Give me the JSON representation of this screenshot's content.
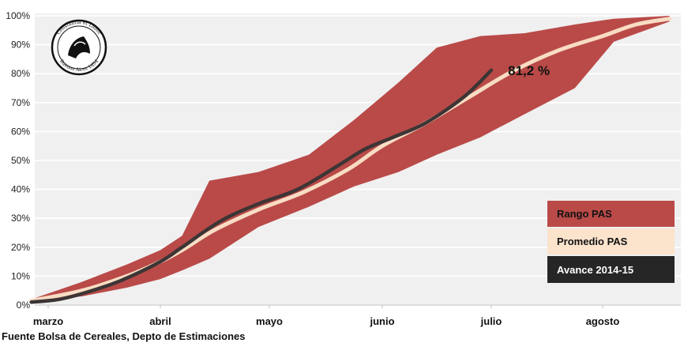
{
  "chart_data": {
    "type": "area",
    "title": "",
    "xlabel": "",
    "ylabel": "",
    "x_unit": "month index (0 = marzo ... 5 = agosto)",
    "categories": [
      "marzo",
      "abril",
      "mayo",
      "junio",
      "julio",
      "agosto"
    ],
    "xlim": [
      -0.15,
      5.6
    ],
    "ylim": [
      0,
      100
    ],
    "y_ticks": [
      "0%",
      "10%",
      "20%",
      "30%",
      "40%",
      "50%",
      "60%",
      "70%",
      "80%",
      "90%",
      "100%"
    ],
    "grid": true,
    "legend_position": "right",
    "series": [
      {
        "name": "Rango PAS",
        "kind": "band",
        "color": "#b94a48",
        "x": [
          -0.15,
          0.3,
          0.7,
          1.0,
          1.2,
          1.45,
          1.9,
          2.35,
          2.75,
          3.15,
          3.5,
          3.9,
          4.3,
          4.75,
          5.1,
          5.6
        ],
        "upper": [
          2,
          8,
          14,
          19,
          24,
          43,
          46,
          52,
          64,
          77,
          89,
          93,
          94,
          97,
          99,
          100
        ],
        "lower": [
          1,
          3,
          6,
          9,
          12,
          16,
          27,
          34,
          41,
          46,
          52,
          58,
          66,
          75,
          91,
          98
        ]
      },
      {
        "name": "Promedio PAS",
        "kind": "line",
        "color": "#f8dcc4",
        "x": [
          -0.15,
          0.3,
          0.7,
          1.0,
          1.2,
          1.5,
          1.9,
          2.3,
          2.7,
          3.0,
          3.4,
          3.8,
          4.2,
          4.6,
          5.0,
          5.3,
          5.6
        ],
        "y": [
          1.5,
          5,
          10,
          15,
          19,
          26,
          33,
          39,
          47,
          55,
          63,
          72,
          81,
          88,
          93,
          97,
          99
        ]
      },
      {
        "name": "Avance 2014-15",
        "kind": "line",
        "color": "#3d3535",
        "x": [
          -0.15,
          0.1,
          0.35,
          0.65,
          1.0,
          1.2,
          1.55,
          1.9,
          2.25,
          2.6,
          2.85,
          3.1,
          3.4,
          3.75,
          4.0
        ],
        "y": [
          1,
          2,
          4.5,
          8.5,
          15,
          20,
          29,
          35,
          40,
          48,
          54,
          58,
          63,
          72,
          81.2
        ]
      }
    ],
    "annotations": [
      {
        "text": "81,2 %",
        "x": 4.15,
        "y": 81.2
      }
    ]
  },
  "legend": {
    "items": [
      {
        "label": "Rango PAS",
        "background": "#b94a48",
        "text_color": "#111111"
      },
      {
        "label": "Promedio PAS",
        "background": "#fbe3cc",
        "text_color": "#111111"
      },
      {
        "label": "Avance 2014-15",
        "background": "#262626",
        "text_color": "#ffffff"
      }
    ]
  },
  "logo": {
    "lettering_top": "Constantia et Labor",
    "lettering_bottom": "Buenos Aires 1854"
  },
  "footer": {
    "source": "Fuente Bolsa de Cereales, Depto de Estimaciones"
  }
}
